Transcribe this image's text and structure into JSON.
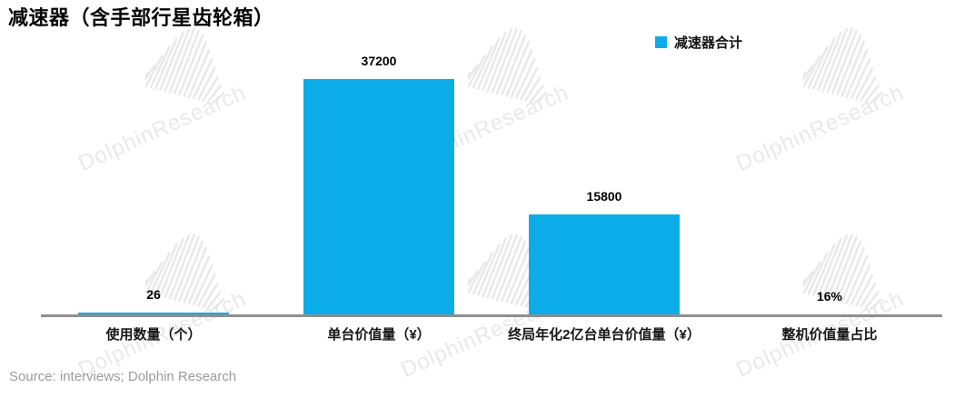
{
  "title": "减速器（含手部行星齿轮箱）",
  "legend": {
    "label": "减速器合计"
  },
  "source_note": "Source: interviews; Dolphin Research",
  "watermark_text": "DolphinResearch",
  "colors": {
    "bar": "#0BACE8",
    "axis_line": "#8E8E8E",
    "value_label": "#000000",
    "category_label": "#161616",
    "source_text": "#9B9B9B",
    "watermark": "#E9E9E9"
  },
  "chart_data": {
    "type": "bar",
    "title": "减速器（含手部行星齿轮箱）",
    "categories": [
      "使用数量（个）",
      "单台价值量（¥）",
      "终局年化2亿台单台价值量（¥）",
      "整机价值量占比"
    ],
    "series": [
      {
        "name": "减速器合计",
        "values": [
          26,
          37200,
          15800,
          0.16
        ]
      }
    ],
    "value_labels": [
      "26",
      "37200",
      "15800",
      "16%"
    ],
    "xlabel": "",
    "ylabel": "",
    "ylim": [
      0,
      40000
    ],
    "y_axis_visible": false,
    "grid": false,
    "legend_position": "top-center",
    "source": "Source: interviews; Dolphin Research"
  }
}
